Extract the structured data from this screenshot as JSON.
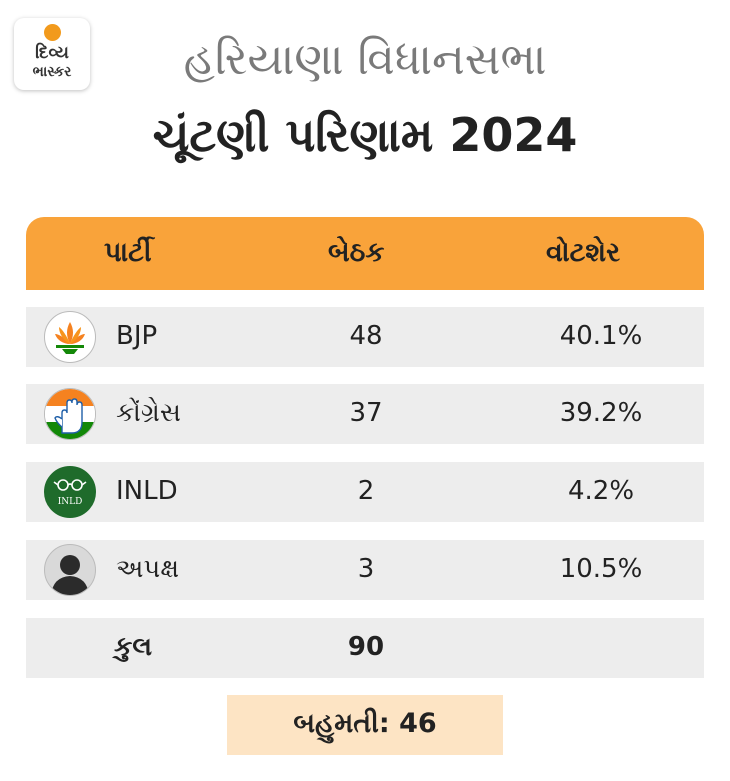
{
  "brand": {
    "line1": "દિવ્ય",
    "line2": "ભાસ્કર",
    "accent": "#f29a1c"
  },
  "title": {
    "line1": "હરિયાણા વિધાનસભા",
    "line2": "ચૂંટણી પરિણામ 2024"
  },
  "table": {
    "header_color": "#f9a33a",
    "columns": [
      "પાર્ટી",
      "બેઠક",
      "વોટશેર"
    ],
    "rows": [
      {
        "party": "BJP",
        "seats": "48",
        "vote_share": "40.1%",
        "icon": "lotus-icon"
      },
      {
        "party": "કોંગ્રેસ",
        "seats": "37",
        "vote_share": "39.2%",
        "icon": "hand-icon"
      },
      {
        "party": "INLD",
        "seats": "2",
        "vote_share": "4.2%",
        "icon": "spectacles-icon",
        "icon_text": "INLD"
      },
      {
        "party": "અપક્ષ",
        "seats": "3",
        "vote_share": "10.5%",
        "icon": "person-silhouette-icon"
      }
    ],
    "total": {
      "label": "કુલ",
      "seats": "90"
    }
  },
  "majority": {
    "text": "બહુમતી: 46"
  }
}
